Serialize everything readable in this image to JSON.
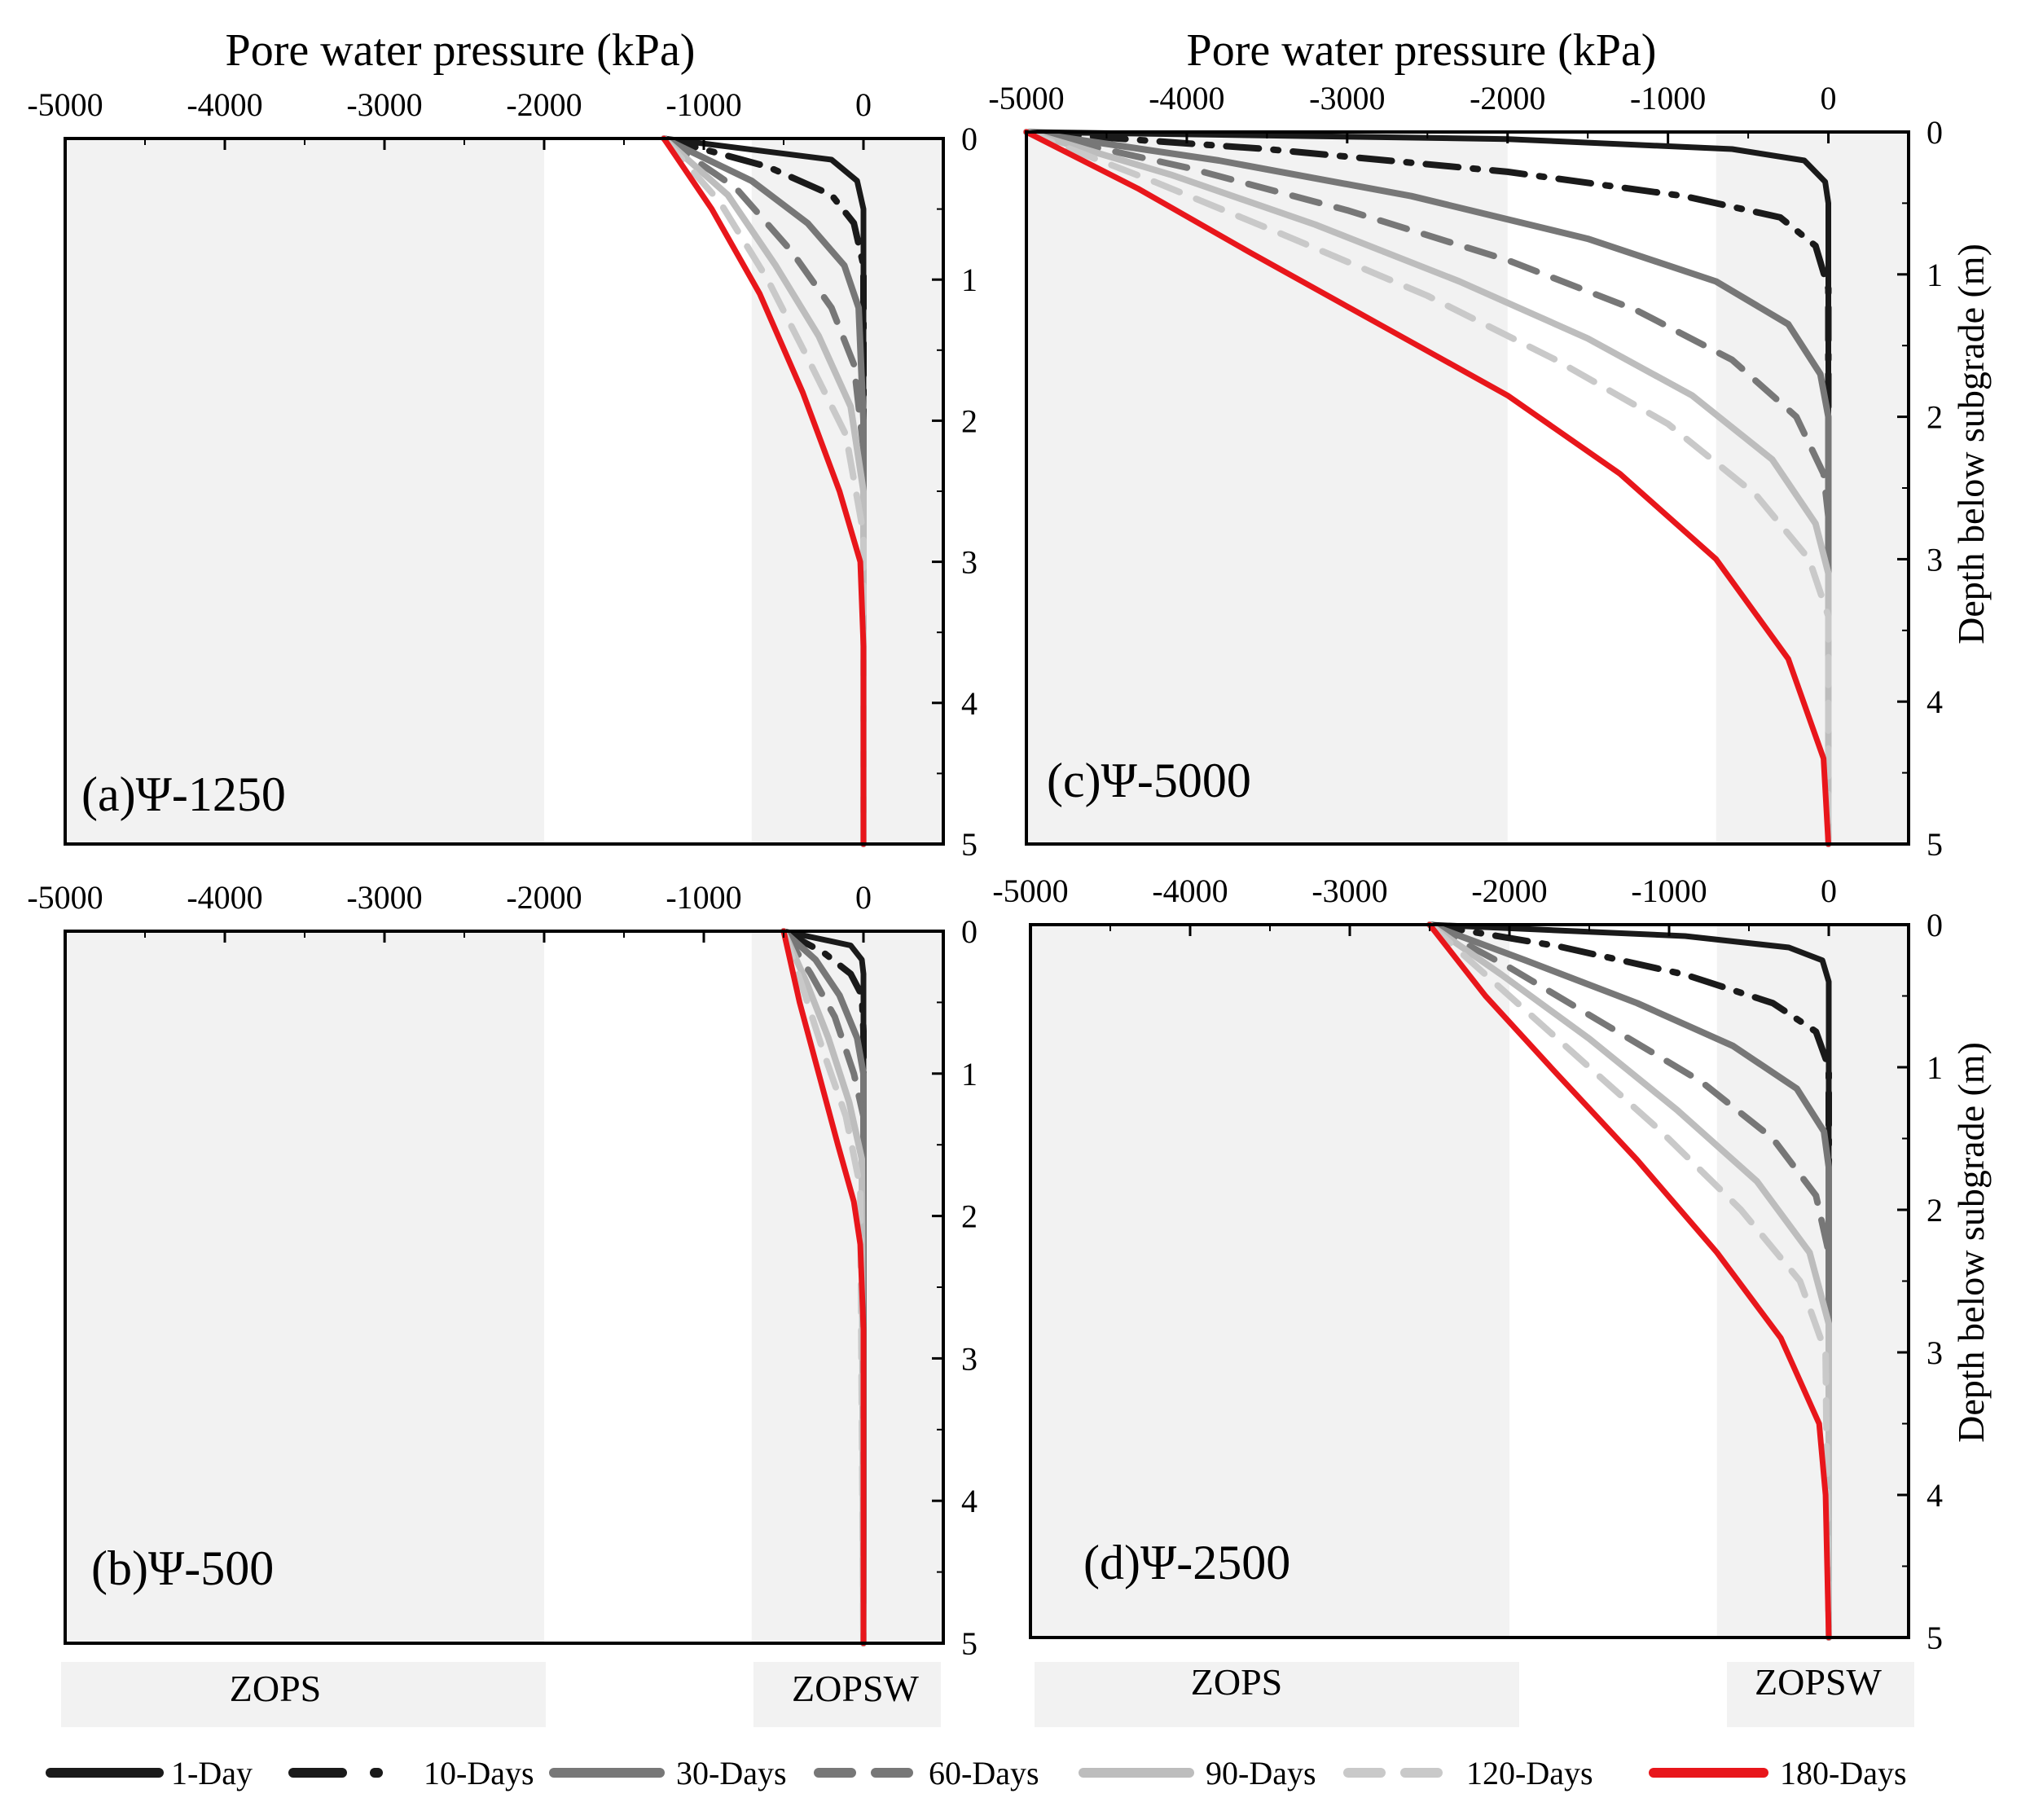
{
  "figure": {
    "x_axis_title": "Pore water pressure (kPa)",
    "y_axis_title": "Depth below subgrade (m)",
    "x_ticks": [
      -5000,
      -4000,
      -3000,
      -2000,
      -1000,
      0
    ],
    "y_ticks": [
      0,
      1,
      2,
      3,
      4,
      5
    ],
    "zones": [
      {
        "name": "ZOPS",
        "from": -5000,
        "to": -2000
      },
      {
        "name": "ZOPSW",
        "from": -700,
        "to": 500
      }
    ],
    "colors": {
      "zone_fill": "#f2f2f2",
      "frame": "#000000"
    }
  },
  "legend": [
    {
      "label": "1-Day",
      "color": "#1a1a1a",
      "dash": "solid"
    },
    {
      "label": "10-Days",
      "color": "#1a1a1a",
      "dash": "dashdot"
    },
    {
      "label": "30-Days",
      "color": "#777777",
      "dash": "solid"
    },
    {
      "label": "60-Days",
      "color": "#777777",
      "dash": "dash"
    },
    {
      "label": "90-Days",
      "color": "#bdbdbd",
      "dash": "solid"
    },
    {
      "label": "120-Days",
      "color": "#c9c9c9",
      "dash": "dash"
    },
    {
      "label": "180-Days",
      "color": "#e8161b",
      "dash": "solid"
    }
  ],
  "chart_data": [
    {
      "type": "line",
      "panel": "a",
      "label": "(a)Ψ-1250",
      "xlim": [
        -5000,
        500
      ],
      "ylim": [
        5,
        0
      ],
      "xlabel": "Pore water pressure (kPa)",
      "ylabel": "",
      "series": [
        {
          "name": "1-Day",
          "x": [
            -1250,
            -200,
            -40,
            0,
            0,
            0,
            0
          ],
          "y": [
            0,
            0.15,
            0.3,
            0.5,
            1,
            3,
            5
          ]
        },
        {
          "name": "10-Days",
          "x": [
            -1250,
            -600,
            -200,
            -60,
            0,
            0,
            0
          ],
          "y": [
            0,
            0.2,
            0.4,
            0.6,
            0.9,
            2,
            5
          ]
        },
        {
          "name": "30-Days",
          "x": [
            -1250,
            -700,
            -350,
            -120,
            -30,
            0,
            0
          ],
          "y": [
            0,
            0.3,
            0.6,
            0.9,
            1.2,
            2,
            5
          ]
        },
        {
          "name": "60-Days",
          "x": [
            -1250,
            -800,
            -450,
            -200,
            -60,
            0,
            0
          ],
          "y": [
            0,
            0.35,
            0.8,
            1.2,
            1.6,
            2.2,
            5
          ]
        },
        {
          "name": "90-Days",
          "x": [
            -1250,
            -850,
            -550,
            -280,
            -80,
            0,
            0
          ],
          "y": [
            0,
            0.4,
            0.9,
            1.4,
            1.9,
            2.5,
            5
          ]
        },
        {
          "name": "120-Days",
          "x": [
            -1250,
            -900,
            -600,
            -330,
            -110,
            0,
            0
          ],
          "y": [
            0,
            0.45,
            1.0,
            1.6,
            2.1,
            2.8,
            5
          ]
        },
        {
          "name": "180-Days",
          "x": [
            -1250,
            -950,
            -650,
            -380,
            -150,
            -20,
            0,
            0
          ],
          "y": [
            0,
            0.5,
            1.1,
            1.8,
            2.5,
            3.0,
            3.6,
            5
          ]
        }
      ]
    },
    {
      "type": "line",
      "panel": "b",
      "label": "(b)Ψ-500",
      "xlim": [
        -5000,
        500
      ],
      "ylim": [
        5,
        0
      ],
      "xlabel": "",
      "ylabel": "",
      "series": [
        {
          "name": "1-Day",
          "x": [
            -500,
            -80,
            -10,
            0,
            0,
            0
          ],
          "y": [
            0,
            0.1,
            0.2,
            0.3,
            1,
            5
          ]
        },
        {
          "name": "10-Days",
          "x": [
            -500,
            -250,
            -80,
            -10,
            0,
            0
          ],
          "y": [
            0,
            0.15,
            0.3,
            0.45,
            0.7,
            5
          ]
        },
        {
          "name": "30-Days",
          "x": [
            -500,
            -300,
            -150,
            -40,
            0,
            0
          ],
          "y": [
            0,
            0.2,
            0.45,
            0.75,
            1.0,
            5
          ]
        },
        {
          "name": "60-Days",
          "x": [
            -500,
            -330,
            -180,
            -60,
            0,
            0
          ],
          "y": [
            0,
            0.3,
            0.6,
            1.0,
            1.3,
            5
          ]
        },
        {
          "name": "90-Days",
          "x": [
            -500,
            -360,
            -220,
            -90,
            -10,
            0
          ],
          "y": [
            0,
            0.35,
            0.75,
            1.2,
            1.6,
            5
          ]
        },
        {
          "name": "120-Days",
          "x": [
            -500,
            -380,
            -250,
            -110,
            -20,
            0
          ],
          "y": [
            0,
            0.4,
            0.85,
            1.3,
            1.8,
            5
          ]
        },
        {
          "name": "180-Days",
          "x": [
            -500,
            -400,
            -280,
            -160,
            -60,
            -20,
            0,
            0
          ],
          "y": [
            0,
            0.5,
            1.0,
            1.5,
            1.9,
            2.2,
            2.8,
            5
          ]
        }
      ]
    },
    {
      "type": "line",
      "panel": "c",
      "label": "(c)Ψ-5000",
      "xlim": [
        -5000,
        500
      ],
      "ylim": [
        5,
        0
      ],
      "xlabel": "Pore water pressure (kPa)",
      "ylabel": "Depth below subgrade (m)",
      "series": [
        {
          "name": "1-Day",
          "x": [
            -5000,
            -2000,
            -600,
            -150,
            -20,
            0,
            0
          ],
          "y": [
            0,
            0.05,
            0.12,
            0.2,
            0.35,
            0.5,
            5
          ]
        },
        {
          "name": "10-Days",
          "x": [
            -5000,
            -3500,
            -2000,
            -900,
            -300,
            -80,
            0,
            0
          ],
          "y": [
            0,
            0.12,
            0.28,
            0.45,
            0.6,
            0.8,
            1.1,
            5
          ]
        },
        {
          "name": "30-Days",
          "x": [
            -5000,
            -3800,
            -2600,
            -1500,
            -700,
            -250,
            -50,
            0,
            0
          ],
          "y": [
            0,
            0.2,
            0.45,
            0.75,
            1.05,
            1.35,
            1.7,
            2.0,
            5
          ]
        },
        {
          "name": "60-Days",
          "x": [
            -5000,
            -4000,
            -3000,
            -2000,
            -1200,
            -600,
            -200,
            -30,
            0,
            0
          ],
          "y": [
            0,
            0.25,
            0.55,
            0.9,
            1.25,
            1.6,
            2.0,
            2.4,
            2.7,
            5
          ]
        },
        {
          "name": "90-Days",
          "x": [
            -5000,
            -4100,
            -3200,
            -2300,
            -1500,
            -850,
            -350,
            -80,
            0,
            0
          ],
          "y": [
            0,
            0.3,
            0.65,
            1.05,
            1.45,
            1.85,
            2.3,
            2.75,
            3.1,
            5
          ]
        },
        {
          "name": "120-Days",
          "x": [
            -5000,
            -4200,
            -3400,
            -2500,
            -1700,
            -1000,
            -450,
            -120,
            0,
            0
          ],
          "y": [
            0,
            0.35,
            0.72,
            1.15,
            1.6,
            2.05,
            2.55,
            3.0,
            3.4,
            5
          ]
        },
        {
          "name": "180-Days",
          "x": [
            -5000,
            -4300,
            -3600,
            -2800,
            -2000,
            -1300,
            -700,
            -250,
            -30,
            0
          ],
          "y": [
            0,
            0.4,
            0.85,
            1.35,
            1.85,
            2.4,
            3.0,
            3.7,
            4.4,
            5
          ]
        }
      ]
    },
    {
      "type": "line",
      "panel": "d",
      "label": "(d)Ψ-2500",
      "xlim": [
        -5000,
        500
      ],
      "ylim": [
        5,
        0
      ],
      "xlabel": "",
      "ylabel": "Depth below subgrade (m)",
      "series": [
        {
          "name": "1-Day",
          "x": [
            -2500,
            -900,
            -250,
            -40,
            0,
            0
          ],
          "y": [
            0,
            0.08,
            0.16,
            0.25,
            0.4,
            5
          ]
        },
        {
          "name": "10-Days",
          "x": [
            -2500,
            -1700,
            -900,
            -350,
            -80,
            0,
            0
          ],
          "y": [
            0,
            0.15,
            0.35,
            0.55,
            0.75,
            1.0,
            5
          ]
        },
        {
          "name": "30-Days",
          "x": [
            -2500,
            -1900,
            -1200,
            -600,
            -200,
            -30,
            0,
            0
          ],
          "y": [
            0,
            0.25,
            0.55,
            0.85,
            1.15,
            1.45,
            1.7,
            5
          ]
        },
        {
          "name": "60-Days",
          "x": [
            -2500,
            -2000,
            -1400,
            -800,
            -350,
            -80,
            0,
            0
          ],
          "y": [
            0,
            0.3,
            0.7,
            1.1,
            1.5,
            1.9,
            2.3,
            5
          ]
        },
        {
          "name": "90-Days",
          "x": [
            -2500,
            -2050,
            -1500,
            -950,
            -450,
            -120,
            0,
            0
          ],
          "y": [
            0,
            0.35,
            0.8,
            1.3,
            1.8,
            2.3,
            2.8,
            5
          ]
        },
        {
          "name": "120-Days",
          "x": [
            -2500,
            -2100,
            -1600,
            -1050,
            -550,
            -180,
            -20,
            0
          ],
          "y": [
            0,
            0.4,
            0.9,
            1.45,
            2.0,
            2.5,
            3.0,
            5
          ]
        },
        {
          "name": "180-Days",
          "x": [
            -2500,
            -2150,
            -1700,
            -1200,
            -700,
            -300,
            -60,
            -20,
            0
          ],
          "y": [
            0,
            0.5,
            1.05,
            1.65,
            2.3,
            2.9,
            3.5,
            4.0,
            5
          ]
        }
      ]
    }
  ]
}
